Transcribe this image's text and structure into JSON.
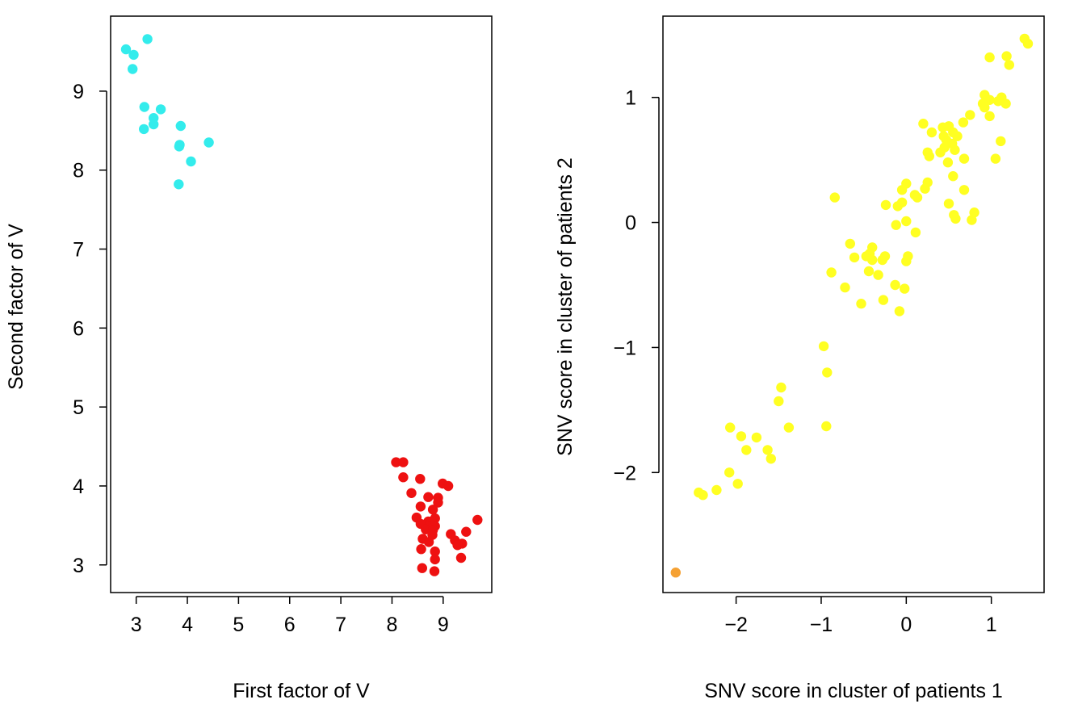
{
  "chart_data": [
    {
      "type": "scatter",
      "xlabel": "First factor of V",
      "ylabel": "Second factor of V",
      "xlim": [
        2.5,
        9.95
      ],
      "ylim": [
        2.65,
        9.95
      ],
      "xticks": [
        3,
        4,
        5,
        6,
        7,
        8,
        9
      ],
      "yticks": [
        3,
        4,
        5,
        6,
        7,
        8,
        9
      ],
      "grid": false,
      "series": [
        {
          "color": "#33ecec",
          "points": [
            [
              2.8,
              9.53
            ],
            [
              2.95,
              9.46
            ],
            [
              3.22,
              9.66
            ],
            [
              2.93,
              9.28
            ],
            [
              3.16,
              8.8
            ],
            [
              3.48,
              8.77
            ],
            [
              3.34,
              8.66
            ],
            [
              3.34,
              8.58
            ],
            [
              3.15,
              8.52
            ],
            [
              3.87,
              8.56
            ],
            [
              3.85,
              8.32
            ],
            [
              3.84,
              8.3
            ],
            [
              4.42,
              8.35
            ],
            [
              4.07,
              8.11
            ],
            [
              3.83,
              7.82
            ]
          ]
        },
        {
          "color": "#ee1111",
          "points": [
            [
              8.08,
              4.3
            ],
            [
              8.22,
              4.3
            ],
            [
              8.22,
              4.11
            ],
            [
              8.55,
              4.09
            ],
            [
              8.99,
              4.03
            ],
            [
              9.1,
              4.0
            ],
            [
              8.38,
              3.91
            ],
            [
              8.71,
              3.86
            ],
            [
              8.9,
              3.85
            ],
            [
              8.9,
              3.79
            ],
            [
              8.56,
              3.74
            ],
            [
              8.8,
              3.7
            ],
            [
              8.48,
              3.6
            ],
            [
              8.84,
              3.59
            ],
            [
              8.71,
              3.55
            ],
            [
              8.78,
              3.55
            ],
            [
              9.67,
              3.57
            ],
            [
              8.56,
              3.52
            ],
            [
              8.73,
              3.49
            ],
            [
              8.84,
              3.49
            ],
            [
              8.66,
              3.45
            ],
            [
              8.8,
              3.44
            ],
            [
              9.45,
              3.42
            ],
            [
              9.15,
              3.39
            ],
            [
              8.79,
              3.38
            ],
            [
              8.6,
              3.33
            ],
            [
              9.23,
              3.31
            ],
            [
              8.72,
              3.29
            ],
            [
              9.37,
              3.27
            ],
            [
              9.28,
              3.25
            ],
            [
              8.57,
              3.2
            ],
            [
              8.84,
              3.17
            ],
            [
              9.35,
              3.09
            ],
            [
              8.84,
              3.07
            ],
            [
              8.59,
              2.96
            ],
            [
              8.83,
              2.92
            ]
          ]
        }
      ]
    },
    {
      "type": "scatter",
      "xlabel": "SNV score in cluster of patients 1",
      "ylabel": "SNV score in cluster of patients 2",
      "xlim": [
        -2.86,
        1.62
      ],
      "ylim": [
        -2.96,
        1.65
      ],
      "xticks": [
        -2,
        -1,
        0,
        1
      ],
      "yticks": [
        -2,
        -1,
        0,
        1
      ],
      "tick_labels": {
        "-2": "−2",
        "-1": "−1",
        "0": "0",
        "1": "1"
      },
      "grid": false,
      "series": [
        {
          "color": "#ffff22",
          "points": [
            [
              1.39,
              1.47
            ],
            [
              1.43,
              1.43
            ],
            [
              1.18,
              1.33
            ],
            [
              0.98,
              1.32
            ],
            [
              1.21,
              1.26
            ],
            [
              1.12,
              1.0
            ],
            [
              0.92,
              1.02
            ],
            [
              0.98,
              0.98
            ],
            [
              1.08,
              0.97
            ],
            [
              0.9,
              0.95
            ],
            [
              1.17,
              0.95
            ],
            [
              0.92,
              0.92
            ],
            [
              0.75,
              0.86
            ],
            [
              0.98,
              0.85
            ],
            [
              0.67,
              0.8
            ],
            [
              0.2,
              0.79
            ],
            [
              0.43,
              0.76
            ],
            [
              0.5,
              0.77
            ],
            [
              0.55,
              0.72
            ],
            [
              0.3,
              0.72
            ],
            [
              0.44,
              0.69
            ],
            [
              0.6,
              0.69
            ],
            [
              0.47,
              0.66
            ],
            [
              1.11,
              0.65
            ],
            [
              0.54,
              0.63
            ],
            [
              0.45,
              0.6
            ],
            [
              0.25,
              0.56
            ],
            [
              0.4,
              0.56
            ],
            [
              0.57,
              0.58
            ],
            [
              0.27,
              0.53
            ],
            [
              0.68,
              0.51
            ],
            [
              1.05,
              0.51
            ],
            [
              0.49,
              0.48
            ],
            [
              0.55,
              0.37
            ],
            [
              0.0,
              0.31
            ],
            [
              0.25,
              0.32
            ],
            [
              0.22,
              0.27
            ],
            [
              -0.05,
              0.26
            ],
            [
              0.68,
              0.26
            ],
            [
              0.1,
              0.22
            ],
            [
              0.13,
              0.2
            ],
            [
              -0.84,
              0.2
            ],
            [
              -0.05,
              0.16
            ],
            [
              0.5,
              0.15
            ],
            [
              -0.24,
              0.14
            ],
            [
              -0.1,
              0.13
            ],
            [
              0.8,
              0.08
            ],
            [
              0.56,
              0.06
            ],
            [
              0.58,
              0.03
            ],
            [
              0.77,
              0.02
            ],
            [
              0.0,
              0.01
            ],
            [
              -0.12,
              -0.02
            ],
            [
              0.11,
              -0.08
            ],
            [
              -0.66,
              -0.17
            ],
            [
              -0.4,
              -0.2
            ],
            [
              -0.43,
              -0.25
            ],
            [
              -0.47,
              -0.27
            ],
            [
              -0.25,
              -0.27
            ],
            [
              -0.61,
              -0.28
            ],
            [
              -0.4,
              -0.3
            ],
            [
              0.02,
              -0.27
            ],
            [
              -0.28,
              -0.3
            ],
            [
              0.0,
              -0.31
            ],
            [
              -0.44,
              -0.39
            ],
            [
              -0.33,
              -0.42
            ],
            [
              -0.88,
              -0.4
            ],
            [
              -0.13,
              -0.5
            ],
            [
              -0.02,
              -0.53
            ],
            [
              -0.72,
              -0.52
            ],
            [
              -0.53,
              -0.65
            ],
            [
              -0.27,
              -0.62
            ],
            [
              -0.08,
              -0.71
            ],
            [
              -0.97,
              -0.99
            ],
            [
              -0.93,
              -1.2
            ],
            [
              -1.47,
              -1.32
            ],
            [
              -1.5,
              -1.43
            ],
            [
              -1.38,
              -1.64
            ],
            [
              -0.94,
              -1.63
            ],
            [
              -2.07,
              -1.64
            ],
            [
              -1.94,
              -1.71
            ],
            [
              -1.76,
              -1.72
            ],
            [
              -1.88,
              -1.82
            ],
            [
              -1.63,
              -1.82
            ],
            [
              -1.59,
              -1.89
            ],
            [
              -2.08,
              -2.0
            ],
            [
              -1.98,
              -2.09
            ],
            [
              -2.23,
              -2.14
            ],
            [
              -2.44,
              -2.16
            ],
            [
              -2.39,
              -2.18
            ]
          ]
        },
        {
          "color": "#f5a133",
          "points": [
            [
              -2.71,
              -2.8
            ]
          ]
        }
      ]
    }
  ]
}
